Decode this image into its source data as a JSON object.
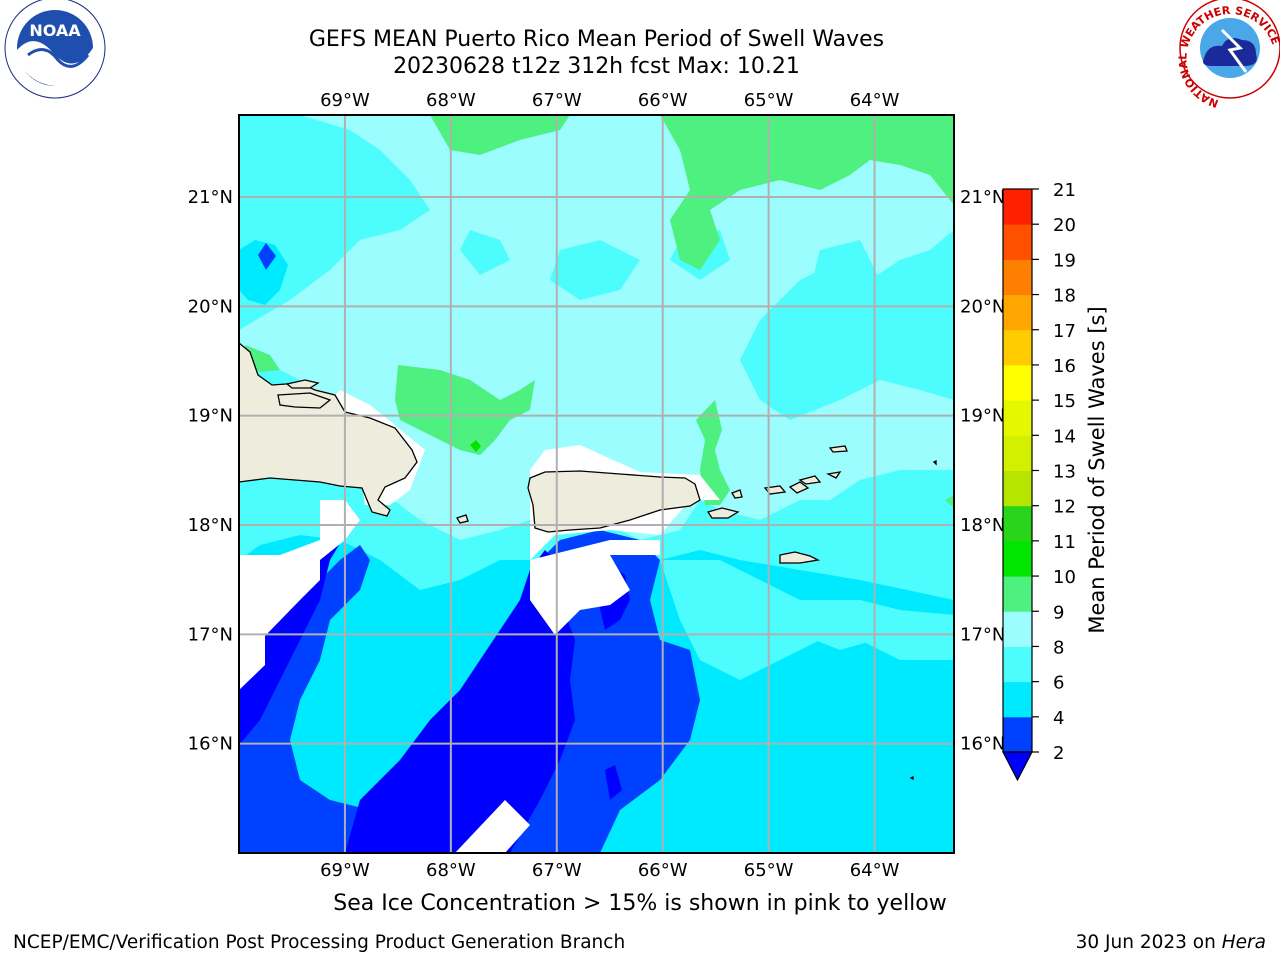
{
  "title": {
    "line1": "GEFS MEAN Puerto Rico Mean Period of Swell Waves",
    "line2": "20230628 t12z 312h fcst   Max: 10.21"
  },
  "map": {
    "lon_range": [
      -70.0,
      -63.25
    ],
    "lat_range": [
      15.0,
      21.75
    ],
    "lon_ticks": [
      {
        "value": -69,
        "label": "69°W"
      },
      {
        "value": -68,
        "label": "68°W"
      },
      {
        "value": -67,
        "label": "67°W"
      },
      {
        "value": -66,
        "label": "66°W"
      },
      {
        "value": -65,
        "label": "65°W"
      },
      {
        "value": -64,
        "label": "64°W"
      }
    ],
    "lat_ticks": [
      {
        "value": 21,
        "label": "21°N"
      },
      {
        "value": 20,
        "label": "20°N"
      },
      {
        "value": 19,
        "label": "19°N"
      },
      {
        "value": 18,
        "label": "18°N"
      },
      {
        "value": 17,
        "label": "17°N"
      },
      {
        "value": 16,
        "label": "16°N"
      }
    ],
    "land_color": "#eeecdc",
    "grid_color": "#b0b0b0"
  },
  "colorbar": {
    "label": "Mean Period of Swell Waves [s]",
    "levels": [
      2,
      4,
      6,
      8,
      9,
      10,
      11,
      12,
      13,
      14,
      15,
      16,
      17,
      18,
      19,
      20,
      21
    ],
    "colors": [
      "#0040ff",
      "#00eaff",
      "#4dfdfd",
      "#9bfdfd",
      "#4ef07f",
      "#00e600",
      "#2ad41a",
      "#b6e600",
      "#d2f000",
      "#e6f800",
      "#ffff00",
      "#ffcc00",
      "#ffa600",
      "#ff8000",
      "#ff5000",
      "#ff2000"
    ],
    "under_color": "#0000ff",
    "extend": "min"
  },
  "bottom_note": "Sea Ice Concentration > 15% is shown in pink to yellow",
  "footer": {
    "left": "NCEP/EMC/Verification Post Processing Product Generation Branch",
    "right_date": "30 Jun 2023 on ",
    "right_host": "Hera"
  },
  "logos": {
    "noaa": "NOAA",
    "nws": "NATIONAL WEATHER SERVICE"
  }
}
